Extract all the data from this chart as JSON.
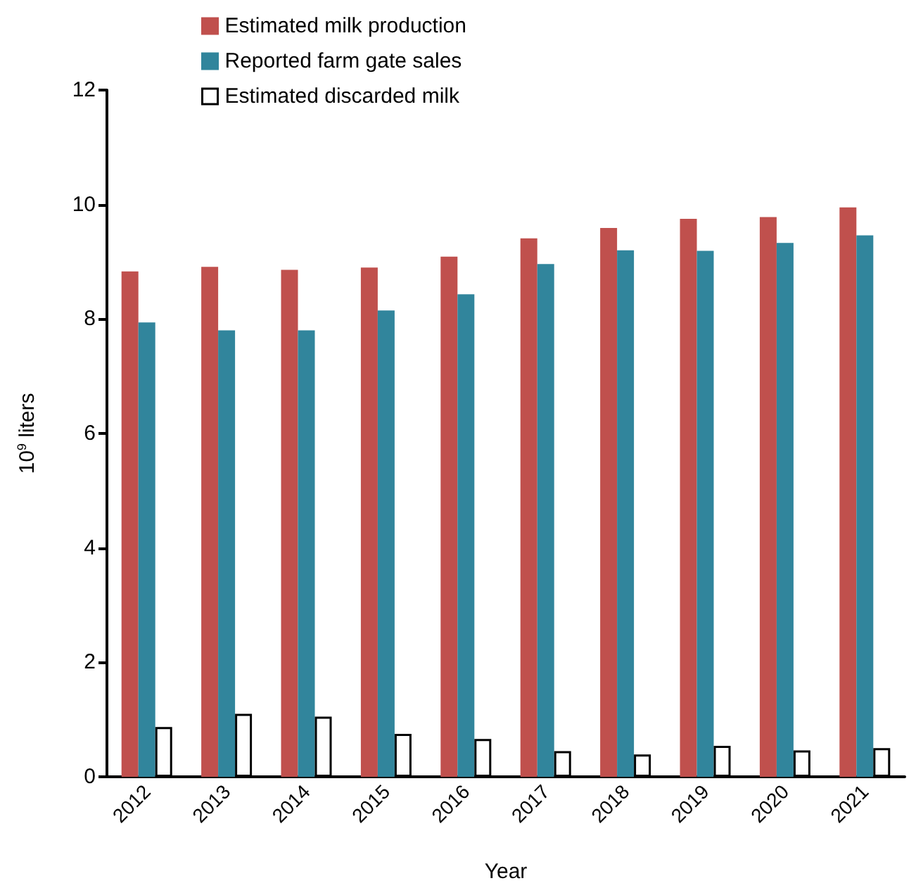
{
  "chart_data": {
    "type": "bar",
    "xlabel": "Year",
    "ylabel": "10$^{9}$ liters",
    "categories": [
      "2012",
      "2013",
      "2014",
      "2015",
      "2016",
      "2017",
      "2018",
      "2019",
      "2020",
      "2021"
    ],
    "series": [
      {
        "name": "Estimated milk production",
        "color": "#c0504d",
        "values": [
          8.83,
          8.91,
          8.86,
          8.9,
          9.09,
          9.41,
          9.59,
          9.75,
          9.78,
          9.95
        ]
      },
      {
        "name": "Reported farm gate sales",
        "color": "#31859c",
        "values": [
          7.94,
          7.8,
          7.8,
          8.15,
          8.43,
          8.96,
          9.2,
          9.19,
          9.33,
          9.46
        ]
      },
      {
        "name": "Estimated discarded milk",
        "color": "#ffffff",
        "values": [
          0.87,
          1.1,
          1.05,
          0.75,
          0.66,
          0.45,
          0.39,
          0.54,
          0.46,
          0.5
        ]
      }
    ],
    "ylim": [
      0,
      12
    ],
    "yticks": [
      0,
      2,
      4,
      6,
      8,
      10,
      12
    ],
    "grid": false,
    "legend": "top"
  }
}
